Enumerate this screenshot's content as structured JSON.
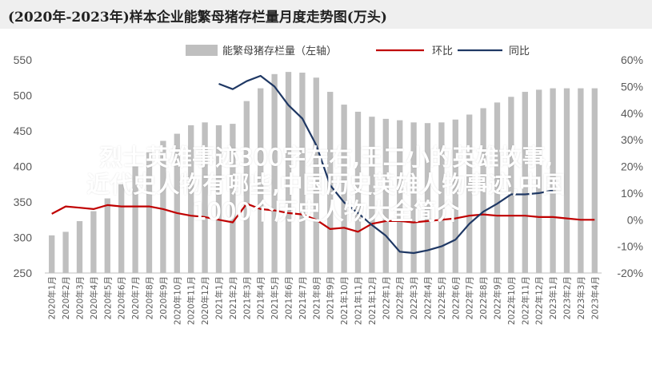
{
  "title": "(2020年-2023年)样本企业能繁母猪存栏量月度走势图(万头)",
  "colors": {
    "bar": "#bfbfbf",
    "huanbi": "#c00000",
    "tongbi": "#1f3864",
    "axis": "#595959"
  },
  "chart_data": {
    "type": "bar",
    "categories": [
      "2020年1月",
      "2020年2月",
      "2020年3月",
      "2020年4月",
      "2020年5月",
      "2020年6月",
      "2020年7月",
      "2020年8月",
      "2020年9月",
      "2020年10月",
      "2020年11月",
      "2020年12月",
      "2021年1月",
      "2021年2月",
      "2021年3月",
      "2021年4月",
      "2021年5月",
      "2021年6月",
      "2021年7月",
      "2021年8月",
      "2021年9月",
      "2021年10月",
      "2021年11月",
      "2021年12月",
      "2022年1月",
      "2022年2月",
      "2022年3月",
      "2022年4月",
      "2022年5月",
      "2022年6月",
      "2022年7月",
      "2022年8月",
      "2022年9月",
      "2022年10月",
      "2022年11月",
      "2022年12月",
      "2023年1月",
      "2023年2月",
      "2023年3月",
      "2023年4月"
    ],
    "series": [
      {
        "name": "能繁母猪存栏量（左轴）",
        "type": "bar",
        "axis": "left",
        "values": [
          303,
          308,
          323,
          337,
          355,
          375,
          400,
          420,
          436,
          446,
          458,
          462,
          458,
          460,
          492,
          510,
          530,
          533,
          532,
          525,
          505,
          487,
          477,
          470,
          467,
          465,
          462,
          461,
          462,
          466,
          473,
          482,
          490,
          498,
          505,
          508,
          510,
          510,
          510,
          510
        ]
      },
      {
        "name": "环比",
        "type": "line",
        "axis": "right",
        "values": [
          2.2,
          5.0,
          4.5,
          4.0,
          5.5,
          5.0,
          5.0,
          5.0,
          4.0,
          2.5,
          1.5,
          1.0,
          0.0,
          -1.0,
          6.0,
          4.0,
          3.5,
          2.5,
          2.0,
          0.0,
          -3.5,
          -3.0,
          -4.5,
          -1.5,
          -0.5,
          -0.5,
          -1.0,
          -0.5,
          0.0,
          0.5,
          1.5,
          2.0,
          1.5,
          1.5,
          1.5,
          1.0,
          1.0,
          0.5,
          0.0,
          0.0
        ]
      },
      {
        "name": "同比",
        "type": "line",
        "axis": "right",
        "values": [
          null,
          null,
          null,
          null,
          null,
          null,
          null,
          null,
          null,
          null,
          null,
          null,
          51,
          49,
          52,
          54,
          50,
          43,
          38,
          28,
          13,
          6.5,
          2.5,
          -2,
          -6,
          -12,
          -12.5,
          -11.5,
          -10,
          -7.5,
          -1.5,
          3,
          6,
          9.5,
          9.5,
          10,
          11,
          null,
          null,
          null
        ]
      }
    ],
    "y_left": {
      "min": 250,
      "max": 550,
      "ticks": [
        250,
        300,
        350,
        400,
        450,
        500,
        550
      ]
    },
    "y_right": {
      "min": -20,
      "max": 60,
      "ticks": [
        "-20%",
        "-10%",
        "0%",
        "10%",
        "20%",
        "30%",
        "40%",
        "50%",
        "60%"
      ]
    },
    "legend": "top"
  },
  "overlay": {
    "line1": "烈士英雄事迹300字左右,王二小的英雄故事,",
    "line2": "近代史人物有哪些,中国历史英雄人物事迹,中国",
    "line3": "1000个历史人物大全简介"
  }
}
